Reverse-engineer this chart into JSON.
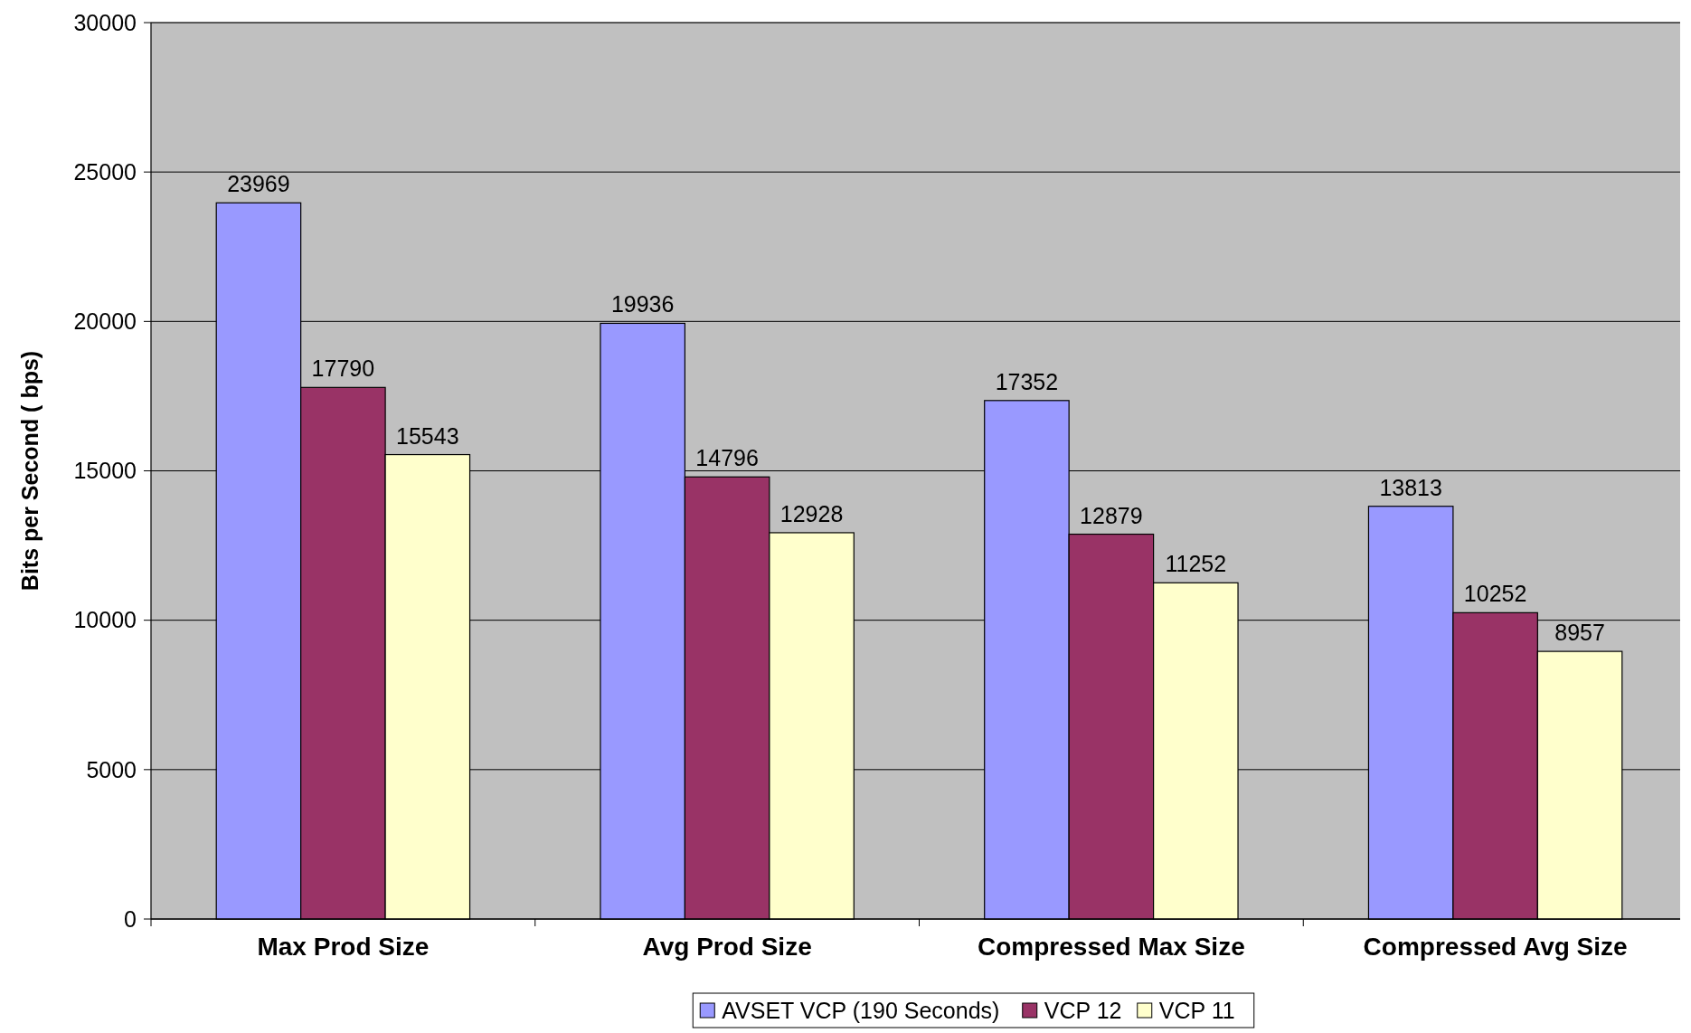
{
  "chart_data": {
    "type": "bar",
    "ylabel": "Bits per Second ( bps)",
    "categories": [
      "Max Prod Size",
      "Avg Prod Size",
      "Compressed Max Size",
      "Compressed Avg Size"
    ],
    "series": [
      {
        "name": "AVSET VCP (190 Seconds)",
        "color": "#9999ff",
        "values": [
          23969,
          19936,
          17352,
          13813
        ]
      },
      {
        "name": "VCP 12",
        "color": "#993366",
        "values": [
          17790,
          14796,
          12879,
          10252
        ]
      },
      {
        "name": "VCP 11",
        "color": "#ffffcc",
        "values": [
          15543,
          12928,
          11252,
          8957
        ]
      }
    ],
    "ylim": [
      0,
      30000
    ],
    "yticks": [
      0,
      5000,
      10000,
      15000,
      20000,
      25000,
      30000
    ],
    "grid": "y",
    "legend": "bottom",
    "data_labels": true
  }
}
